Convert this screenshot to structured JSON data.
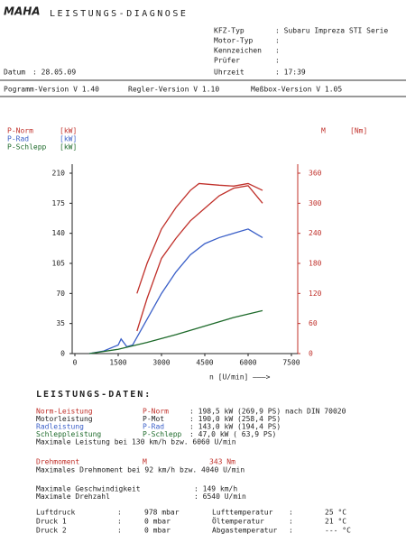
{
  "header": {
    "logo": "MAHA",
    "title": "LEISTUNGS-DIAGNOSE",
    "fields": [
      [
        "KFZ-Typ",
        ": Subaru Impreza STI Serie"
      ],
      [
        "Motor-Typ",
        ":"
      ],
      [
        "Kennzeichen",
        ":"
      ],
      [
        "Prüfer",
        ":"
      ]
    ],
    "date_label": "Datum",
    "date": ": 28.05.09",
    "time_label": "Uhrzeit",
    "time": ": 17:39",
    "versions": [
      "Pogramm-Version V 1.40",
      "Regler-Version V 1.10",
      "Meßbox-Version V 1.05"
    ]
  },
  "chart_data": {
    "type": "line",
    "legend": [
      [
        "P-Norm",
        "[kW]"
      ],
      [
        "P-Rad",
        "[kW]"
      ],
      [
        "P-Schlepp",
        "[kW]"
      ]
    ],
    "y2_label": [
      "M",
      "[Nm]"
    ],
    "x_label": "n [U/min]  ———>",
    "xlim": [
      0,
      7500
    ],
    "xticks": [
      0,
      1500,
      3000,
      4500,
      6000,
      7500
    ],
    "ylim": [
      0,
      210
    ],
    "yticks": [
      0,
      35,
      70,
      105,
      140,
      175,
      210
    ],
    "y2lim": [
      0,
      360
    ],
    "y2ticks": [
      0,
      60,
      120,
      180,
      240,
      300,
      360
    ],
    "series": [
      {
        "name": "P-Norm",
        "color": "#c0302a",
        "x": [
          2150,
          2500,
          3000,
          3500,
          4000,
          4300,
          5000,
          5500,
          6000,
          6500
        ],
        "values": [
          70,
          105,
          145,
          170,
          190,
          198,
          196,
          195,
          198,
          190
        ]
      },
      {
        "name": "M",
        "color": "#c0302a",
        "axis": "y2",
        "x": [
          2150,
          2500,
          3000,
          3500,
          4000,
          4500,
          5000,
          5500,
          6000,
          6500
        ],
        "values": [
          45,
          110,
          190,
          230,
          265,
          290,
          315,
          330,
          335,
          300
        ]
      },
      {
        "name": "P-Rad",
        "color": "#3a5fc8",
        "x": [
          500,
          1000,
          1500,
          1600,
          1800,
          2000,
          2500,
          3000,
          3500,
          4000,
          4500,
          5000,
          5500,
          6000,
          6500
        ],
        "values": [
          0,
          3,
          10,
          17,
          8,
          10,
          40,
          70,
          95,
          115,
          128,
          135,
          140,
          145,
          135
        ]
      },
      {
        "name": "P-Schlepp",
        "color": "#1d6a2a",
        "x": [
          500,
          1500,
          2500,
          3500,
          4500,
          5500,
          6500
        ],
        "values": [
          0,
          5,
          13,
          22,
          32,
          42,
          50
        ]
      }
    ]
  },
  "results": {
    "title": "LEISTUNGS-DATEN:",
    "power": [
      [
        "Norm-Leistung",
        "P-Norm",
        ": 198,5 kW (269,9 PS) nach DIN 70020"
      ],
      [
        "Motorleistung",
        "P-Mot",
        ": 190,0 kW (258,4 PS)"
      ],
      [
        "Radleistung",
        "P-Rad",
        ": 143,0 kW (194,4 PS)"
      ],
      [
        "Schleppleistung",
        "P-Schlepp",
        ": 47,0 kW ( 63,9 PS)"
      ]
    ],
    "max_power": "Maximale Leistung bei 130 km/h bzw. 6060 U/min",
    "torque": [
      "Drehmoment",
      "M",
      "343 Nm"
    ],
    "max_torque": "Maximales Drehmoment bei  92 km/h bzw.  4040 U/min",
    "speed": [
      [
        "Maximale Geschwindigkeit",
        ":  149 km/h"
      ],
      [
        "Maximale Drehzahl",
        ":  6540 U/min"
      ]
    ],
    "ambient": [
      [
        "Luftdruck",
        ":",
        "978 mbar",
        "Lufttemperatur",
        ":",
        "25 °C"
      ],
      [
        "Druck 1",
        ":",
        "0 mbar",
        "Öltemperatur",
        ":",
        "21 °C"
      ],
      [
        "Druck 2",
        ":",
        "0 mbar",
        "Abgastemperatur",
        ":",
        "--- °C"
      ]
    ]
  }
}
